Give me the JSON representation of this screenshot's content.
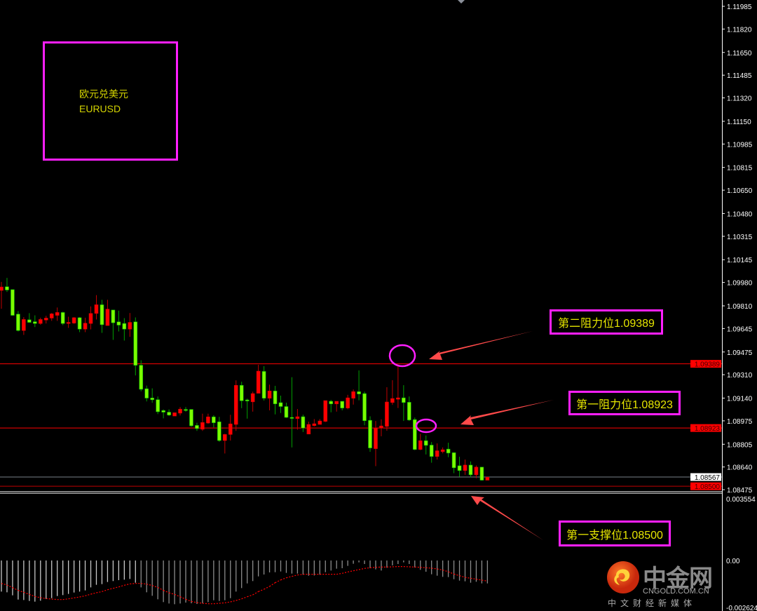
{
  "symbol_box": {
    "name_cn": "欧元兑美元",
    "name_en": "EURUSD"
  },
  "annotations": [
    {
      "text": "第二阻力位1.09389",
      "price": 1.09389
    },
    {
      "text": "第一阻力位1.08923",
      "price": 1.08923
    },
    {
      "text": "第一支撑位1.08500",
      "price": 1.085
    }
  ],
  "logo": {
    "main": "中金网",
    "domain": "CNGOLD.COM.CN",
    "tagline": "中文财经新媒体"
  },
  "colors": {
    "bull": "#ff0000",
    "bear": "#7cfc00",
    "level_line": "#ff0000",
    "box_border": "#ff1fff",
    "annotation_text": "#e6e600",
    "arrow": "#ff4a4a",
    "histogram": "#b0b0b0",
    "signal": "#ff0000"
  },
  "chart_data": {
    "type": "candlestick",
    "symbol": "EURUSD",
    "y_ticks": [
      "1.11985",
      "1.11820",
      "1.11650",
      "1.11485",
      "1.11320",
      "1.11150",
      "1.10985",
      "1.10815",
      "1.10650",
      "1.10480",
      "1.10315",
      "1.10145",
      "1.09980",
      "1.09810",
      "1.09645",
      "1.09475",
      "1.09310",
      "1.09140",
      "1.08975",
      "1.08805",
      "1.08640",
      "1.08475"
    ],
    "ylim": [
      1.08475,
      1.11985
    ],
    "price_tags": [
      {
        "label": "1.09389",
        "price": 1.09389,
        "style": "red"
      },
      {
        "label": "1.08923",
        "price": 1.08923,
        "style": "red"
      },
      {
        "label": "1.08567",
        "price": 1.08567,
        "style": "white"
      },
      {
        "label": "1.08500",
        "price": 1.085,
        "style": "red"
      }
    ],
    "horizontal_lines": [
      {
        "price": 1.09389,
        "color": "#ff0000"
      },
      {
        "price": 1.08923,
        "color": "#ff0000"
      },
      {
        "price": 1.08567,
        "color": "#7a8089"
      },
      {
        "price": 1.085,
        "color": "#c00000"
      }
    ],
    "ohlc_columns": [
      "open",
      "high",
      "low",
      "close"
    ],
    "candles": [
      [
        1.09922,
        1.09984,
        1.09789,
        1.09947
      ],
      [
        1.09949,
        1.10013,
        1.09911,
        1.09925
      ],
      [
        1.09928,
        1.09928,
        1.09738,
        1.09741
      ],
      [
        1.0975,
        1.09772,
        1.09624,
        1.09631
      ],
      [
        1.09631,
        1.09728,
        1.09599,
        1.09711
      ],
      [
        1.09709,
        1.09757,
        1.09687,
        1.0969
      ],
      [
        1.09695,
        1.09741,
        1.09656,
        1.09682
      ],
      [
        1.09682,
        1.09724,
        1.09673,
        1.09711
      ],
      [
        1.09707,
        1.09738,
        1.09682,
        1.09721
      ],
      [
        1.09721,
        1.09758,
        1.09701,
        1.09752
      ],
      [
        1.09741,
        1.09798,
        1.09701,
        1.09762
      ],
      [
        1.09762,
        1.09767,
        1.0967,
        1.09682
      ],
      [
        1.09682,
        1.09731,
        1.0965,
        1.0969
      ],
      [
        1.09685,
        1.09728,
        1.09679,
        1.09724
      ],
      [
        1.09724,
        1.09728,
        1.09619,
        1.09641
      ],
      [
        1.09641,
        1.09724,
        1.09619,
        1.09684
      ],
      [
        1.09682,
        1.09806,
        1.09639,
        1.09755
      ],
      [
        1.09755,
        1.09888,
        1.09711,
        1.09818
      ],
      [
        1.09818,
        1.09854,
        1.09614,
        1.09673
      ],
      [
        1.09667,
        1.09854,
        1.09667,
        1.09786
      ],
      [
        1.0978,
        1.0978,
        1.09563,
        1.09687
      ],
      [
        1.09694,
        1.09775,
        1.09624,
        1.0967
      ],
      [
        1.09682,
        1.09721,
        1.09558,
        1.09641
      ],
      [
        1.09641,
        1.09758,
        1.09585,
        1.0969
      ],
      [
        1.09694,
        1.09726,
        1.09305,
        1.09378
      ],
      [
        1.09379,
        1.09415,
        1.09189,
        1.09204
      ],
      [
        1.09208,
        1.09231,
        1.09116,
        1.0914
      ],
      [
        1.09141,
        1.09211,
        1.09106,
        1.09128
      ],
      [
        1.09129,
        1.09152,
        1.09024,
        1.09041
      ],
      [
        1.0905,
        1.09058,
        1.08993,
        1.09038
      ],
      [
        1.09038,
        1.09058,
        1.0901,
        1.09017
      ],
      [
        1.0901,
        1.09034,
        1.0901,
        1.09034
      ],
      [
        1.09031,
        1.09075,
        1.09014,
        1.0906
      ],
      [
        1.09058,
        1.09075,
        1.09041,
        1.09056
      ],
      [
        1.09058,
        1.09058,
        1.08932,
        1.08939
      ],
      [
        1.08942,
        1.08961,
        1.08902,
        1.08919
      ],
      [
        1.08914,
        1.09027,
        1.08902,
        1.08963
      ],
      [
        1.08959,
        1.09027,
        1.08953,
        1.09004
      ],
      [
        1.09004,
        1.09016,
        1.08927,
        1.08961
      ],
      [
        1.08968,
        1.09004,
        1.08823,
        1.08832
      ],
      [
        1.08832,
        1.08881,
        1.08738,
        1.08876
      ],
      [
        1.08876,
        1.09019,
        1.08832,
        1.08953
      ],
      [
        1.08949,
        1.09269,
        1.08902,
        1.09233
      ],
      [
        1.09233,
        1.09259,
        1.09067,
        1.09121
      ],
      [
        1.09127,
        1.09136,
        1.08991,
        1.09119
      ],
      [
        1.09113,
        1.09187,
        1.09042,
        1.09173
      ],
      [
        1.09175,
        1.09382,
        1.09175,
        1.09336
      ],
      [
        1.09334,
        1.09372,
        1.09122,
        1.09139
      ],
      [
        1.09139,
        1.09238,
        1.09051,
        1.09192
      ],
      [
        1.09192,
        1.09229,
        1.09022,
        1.09098
      ],
      [
        1.09107,
        1.09158,
        1.09032,
        1.09079
      ],
      [
        1.09079,
        1.09107,
        1.08996,
        1.09
      ],
      [
        1.09,
        1.09292,
        1.08782,
        1.08996
      ],
      [
        1.08991,
        1.09061,
        1.08911,
        1.09005
      ],
      [
        1.09005,
        1.0902,
        1.08894,
        1.08923
      ],
      [
        1.08879,
        1.08969,
        1.08879,
        1.08949
      ],
      [
        1.0894,
        1.08988,
        1.08935,
        1.08954
      ],
      [
        1.08949,
        1.08988,
        1.08949,
        1.08974
      ],
      [
        1.08971,
        1.09122,
        1.08966,
        1.09122
      ],
      [
        1.09117,
        1.09127,
        1.09037,
        1.09098
      ],
      [
        1.09098,
        1.09117,
        1.09042,
        1.09117
      ],
      [
        1.09117,
        1.09117,
        1.09051,
        1.09068
      ],
      [
        1.09068,
        1.09164,
        1.09059,
        1.09142
      ],
      [
        1.09139,
        1.09203,
        1.09093,
        1.09187
      ],
      [
        1.09187,
        1.09341,
        1.09124,
        1.0917
      ],
      [
        1.09173,
        1.09187,
        1.08943,
        1.08976
      ],
      [
        1.08979,
        1.09008,
        1.0875,
        1.08778
      ],
      [
        1.08773,
        1.08974,
        1.08646,
        1.08923
      ],
      [
        1.08923,
        1.08986,
        1.08863,
        1.08938
      ],
      [
        1.08935,
        1.09219,
        1.08903,
        1.09112
      ],
      [
        1.09108,
        1.0927,
        1.09091,
        1.09137
      ],
      [
        1.09132,
        1.09382,
        1.09068,
        1.09142
      ],
      [
        1.09142,
        1.09234,
        1.08974,
        1.09108
      ],
      [
        1.0911,
        1.09152,
        1.08974,
        1.08981
      ],
      [
        1.08984,
        1.08999,
        1.08762,
        1.08767
      ],
      [
        1.08767,
        1.08881,
        1.08762,
        1.08831
      ],
      [
        1.08831,
        1.08869,
        1.08731,
        1.08797
      ],
      [
        1.08799,
        1.08821,
        1.08671,
        1.08716
      ],
      [
        1.08716,
        1.08811,
        1.08694,
        1.08758
      ],
      [
        1.08751,
        1.08782,
        1.08739,
        1.08765
      ],
      [
        1.0877,
        1.08816,
        1.08711,
        1.08741
      ],
      [
        1.08744,
        1.08744,
        1.08595,
        1.08634
      ],
      [
        1.08649,
        1.08714,
        1.08569,
        1.08614
      ],
      [
        1.08614,
        1.08694,
        1.08583,
        1.08654
      ],
      [
        1.08654,
        1.0868,
        1.08566,
        1.08583
      ],
      [
        1.08583,
        1.08651,
        1.08558,
        1.08639
      ],
      [
        1.08639,
        1.08639,
        1.08541,
        1.08544
      ],
      [
        1.08544,
        1.08566,
        1.08544,
        1.08566
      ]
    ],
    "indicator": {
      "type": "histogram+signal",
      "y_ticks": [
        "0.003554",
        "0.00",
        "-0.002624"
      ],
      "ylim": [
        -0.002624,
        0.003554
      ],
      "histogram": [
        -0.001737,
        -0.001776,
        -0.001945,
        -0.002181,
        -0.002207,
        -0.002259,
        -0.002298,
        -0.002246,
        -0.002154,
        -0.002102,
        -0.001985,
        -0.001932,
        -0.001867,
        -0.001789,
        -0.001737,
        -0.001671,
        -0.001502,
        -0.001358,
        -0.001319,
        -0.001201,
        -0.001149,
        -0.001097,
        -0.001071,
        -0.001031,
        -0.00124,
        -0.001502,
        -0.001776,
        -0.001972,
        -0.002167,
        -0.002324,
        -0.002402,
        -0.002442,
        -0.002402,
        -0.00235,
        -0.002389,
        -0.002429,
        -0.002389,
        -0.002324,
        -0.00222,
        -0.002259,
        -0.00222,
        -0.002102,
        -0.001737,
        -0.001541,
        -0.00128,
        -0.001149,
        -0.000888,
        -0.000783,
        -0.000666,
        -0.000653,
        -0.000614,
        -0.000692,
        -0.000731,
        -0.000731,
        -0.000796,
        -0.000849,
        -0.000836,
        -0.000796,
        -0.000653,
        -0.000561,
        -0.000457,
        -0.000431,
        -0.0003,
        -0.000183,
        -0.000104,
        -0.000196,
        -0.000431,
        -0.000496,
        -0.000561,
        -0.000405,
        -0.000274,
        -0.000196,
        -0.000104,
        -0.000196,
        -0.000392,
        -0.000522,
        -0.000627,
        -0.00077,
        -0.000849,
        -0.000914,
        -0.000927,
        -0.001045,
        -0.001123,
        -0.001162,
        -0.00124,
        -0.001188,
        -0.00128,
        -0.00128
      ],
      "signal": [
        -0.00128,
        -0.001371,
        -0.001515,
        -0.001671,
        -0.001776,
        -0.001893,
        -0.002011,
        -0.002076,
        -0.002128,
        -0.002154,
        -0.002181,
        -0.002181,
        -0.002141,
        -0.002089,
        -0.002037,
        -0.001972,
        -0.00188,
        -0.001802,
        -0.001737,
        -0.001632,
        -0.001554,
        -0.001475,
        -0.001384,
        -0.001306,
        -0.00128,
        -0.00128,
        -0.001319,
        -0.001397,
        -0.001502,
        -0.001671,
        -0.001802,
        -0.001893,
        -0.002024,
        -0.002167,
        -0.002285,
        -0.00235,
        -0.002389,
        -0.002416,
        -0.002416,
        -0.002389,
        -0.002363,
        -0.002311,
        -0.002233,
        -0.002141,
        -0.002024,
        -0.001919,
        -0.001737,
        -0.001606,
        -0.001449,
        -0.00124,
        -0.001084,
        -0.000966,
        -0.000888,
        -0.00081,
        -0.00077,
        -0.00077,
        -0.00077,
        -0.00077,
        -0.00077,
        -0.00077,
        -0.00077,
        -0.000718,
        -0.00064,
        -0.000574,
        -0.000509,
        -0.000444,
        -0.000405,
        -0.000379,
        -0.000366,
        -0.000366,
        -0.000353,
        -0.000339,
        -0.000339,
        -0.000353,
        -0.000366,
        -0.000379,
        -0.000405,
        -0.000431,
        -0.00047,
        -0.000535,
        -0.000627,
        -0.000757,
        -0.000849,
        -0.00094,
        -0.000992,
        -0.001045,
        -0.001097,
        -0.001149
      ]
    }
  }
}
